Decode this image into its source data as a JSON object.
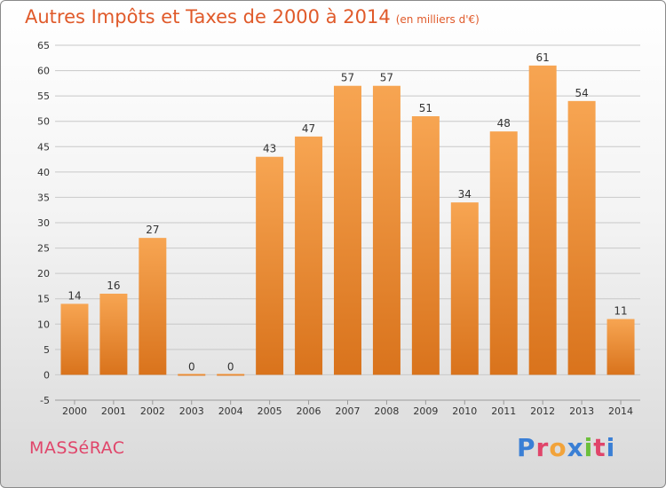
{
  "header": {
    "title": "Autres Impôts et Taxes de 2000 à 2014",
    "subtitle": "(en milliers d'€)"
  },
  "footer": {
    "commune": "MASSéRAC",
    "logo_text": "Proxiti",
    "logo_colors": [
      "#3a7fd5",
      "#e0456a",
      "#f2a33a",
      "#3a7fd5",
      "#6cbf3a",
      "#e0456a",
      "#3a7fd5"
    ]
  },
  "colors": {
    "bar_top": "#f7a552",
    "bar_bottom": "#d9731c",
    "grid": "#c8c8c8",
    "axis_text": "#333333"
  },
  "chart_data": {
    "type": "bar",
    "categories": [
      "2000",
      "2001",
      "2002",
      "2003",
      "2004",
      "2005",
      "2006",
      "2007",
      "2008",
      "2009",
      "2010",
      "2011",
      "2012",
      "2013",
      "2014"
    ],
    "values": [
      14,
      16,
      27,
      0,
      0,
      43,
      47,
      57,
      57,
      51,
      34,
      48,
      61,
      54,
      11
    ],
    "value_labels": [
      "14",
      "16",
      "27",
      "0",
      "0",
      "43",
      "47",
      "57",
      "57",
      "51",
      "34",
      "48",
      "61",
      "54",
      "11"
    ],
    "y_ticks": [
      -5,
      0,
      5,
      10,
      15,
      20,
      25,
      30,
      35,
      40,
      45,
      50,
      55,
      60,
      65
    ],
    "ylim": [
      -5,
      65
    ],
    "grid": true
  }
}
